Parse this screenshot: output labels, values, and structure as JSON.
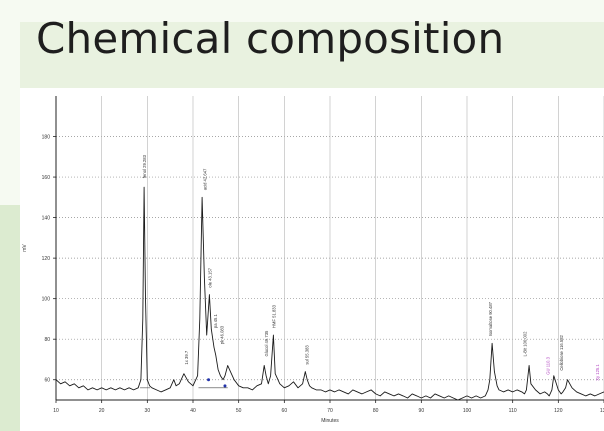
{
  "title": "Chemical composition",
  "chart_data": {
    "type": "line",
    "ylabel": "mV",
    "xlabel": "Minutes",
    "xlim": [
      10,
      130
    ],
    "ylim": [
      50,
      200
    ],
    "xticks": [
      10,
      20,
      30,
      40,
      50,
      60,
      70,
      80,
      90,
      100,
      110,
      120,
      130
    ],
    "yticks": [
      60,
      80,
      100,
      120,
      140,
      160,
      180
    ],
    "grid": true,
    "series": [
      {
        "x": [
          10,
          11,
          12,
          13,
          14,
          15,
          16,
          17,
          18,
          19,
          20,
          21,
          22,
          23,
          24,
          25,
          26,
          27,
          28,
          28.6,
          29,
          29.3,
          29.6,
          30,
          30.5,
          31,
          32,
          33,
          34,
          35,
          35.8,
          36.3,
          37,
          38,
          39,
          40,
          41,
          41.5,
          42,
          42.5,
          43,
          43.6,
          44,
          44.6,
          45,
          45.5,
          46,
          46.6,
          47,
          47.6,
          48,
          49,
          50,
          51,
          52,
          53,
          54,
          55,
          55.6,
          56,
          56.5,
          57,
          57.6,
          58,
          59,
          60,
          61,
          62,
          63,
          64,
          64.6,
          65,
          65.5,
          66,
          67,
          68,
          69,
          70,
          71,
          72,
          73,
          74,
          75,
          76,
          77,
          78,
          79,
          80,
          81,
          82,
          83,
          84,
          85,
          86,
          87,
          88,
          89,
          90,
          91,
          92,
          93,
          94,
          95,
          96,
          97,
          98,
          99,
          100,
          101,
          102,
          103,
          104,
          104.6,
          105,
          105.5,
          106,
          106.6,
          107,
          108,
          109,
          110,
          111,
          112,
          112.6,
          113,
          113.6,
          114,
          115,
          116,
          117,
          117.6,
          118,
          118.6,
          119,
          120,
          120.6,
          121,
          121.6,
          122,
          123,
          124,
          125,
          126,
          127,
          128,
          129,
          130
        ],
        "y": [
          60,
          58,
          59,
          57,
          58,
          56,
          57,
          55,
          56,
          55,
          56,
          55,
          56,
          55,
          56,
          55,
          56,
          55,
          56,
          60,
          90,
          155,
          100,
          60,
          57,
          56,
          55,
          54,
          55,
          56,
          60,
          57,
          58,
          63,
          59,
          57,
          62,
          90,
          150,
          110,
          82,
          102,
          85,
          76,
          72,
          65,
          62,
          60,
          62,
          67,
          65,
          60,
          57,
          56,
          56,
          55,
          57,
          58,
          67,
          62,
          58,
          62,
          82,
          63,
          58,
          56,
          57,
          59,
          56,
          58,
          64,
          60,
          57,
          56,
          55,
          55,
          54,
          55,
          54,
          55,
          54,
          53,
          55,
          54,
          53,
          54,
          55,
          53,
          52,
          54,
          53,
          52,
          53,
          52,
          51,
          53,
          52,
          51,
          52,
          51,
          53,
          52,
          51,
          52,
          51,
          50,
          51,
          52,
          51,
          52,
          51,
          52,
          55,
          60,
          78,
          64,
          57,
          55,
          54,
          55,
          54,
          55,
          54,
          53,
          55,
          67,
          58,
          55,
          53,
          54,
          53,
          52,
          55,
          62,
          55,
          53,
          54,
          56,
          60,
          56,
          54,
          53,
          52,
          53,
          52,
          53,
          54
        ]
      }
    ],
    "peak_labels": [
      "fenol 29.283",
      "1x 39.7",
      "acid 42.647",
      "ole 43.157",
      "pa 45.1",
      "pk 46.083",
      "Glucol 49.735",
      "HMF 51.833",
      "sul 55.383",
      "Isomaltose 90.487",
      "L-Bit 106.002",
      "GU 110.3",
      "Cellobiose 116.582",
      "Xy 125.1"
    ]
  }
}
